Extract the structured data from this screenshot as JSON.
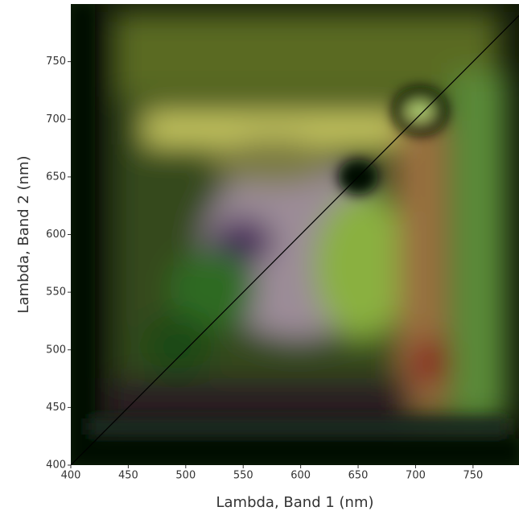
{
  "chart_data": {
    "type": "image",
    "xlabel": "Lambda, Band 1 (nm)",
    "ylabel": "Lambda, Band 2 (nm)",
    "xlim": [
      400,
      790
    ],
    "ylim": [
      400,
      800
    ],
    "xticks": [
      400,
      450,
      500,
      550,
      600,
      650,
      700,
      750
    ],
    "yticks": [
      400,
      450,
      500,
      550,
      600,
      650,
      700,
      750
    ],
    "diagonal": true
  }
}
